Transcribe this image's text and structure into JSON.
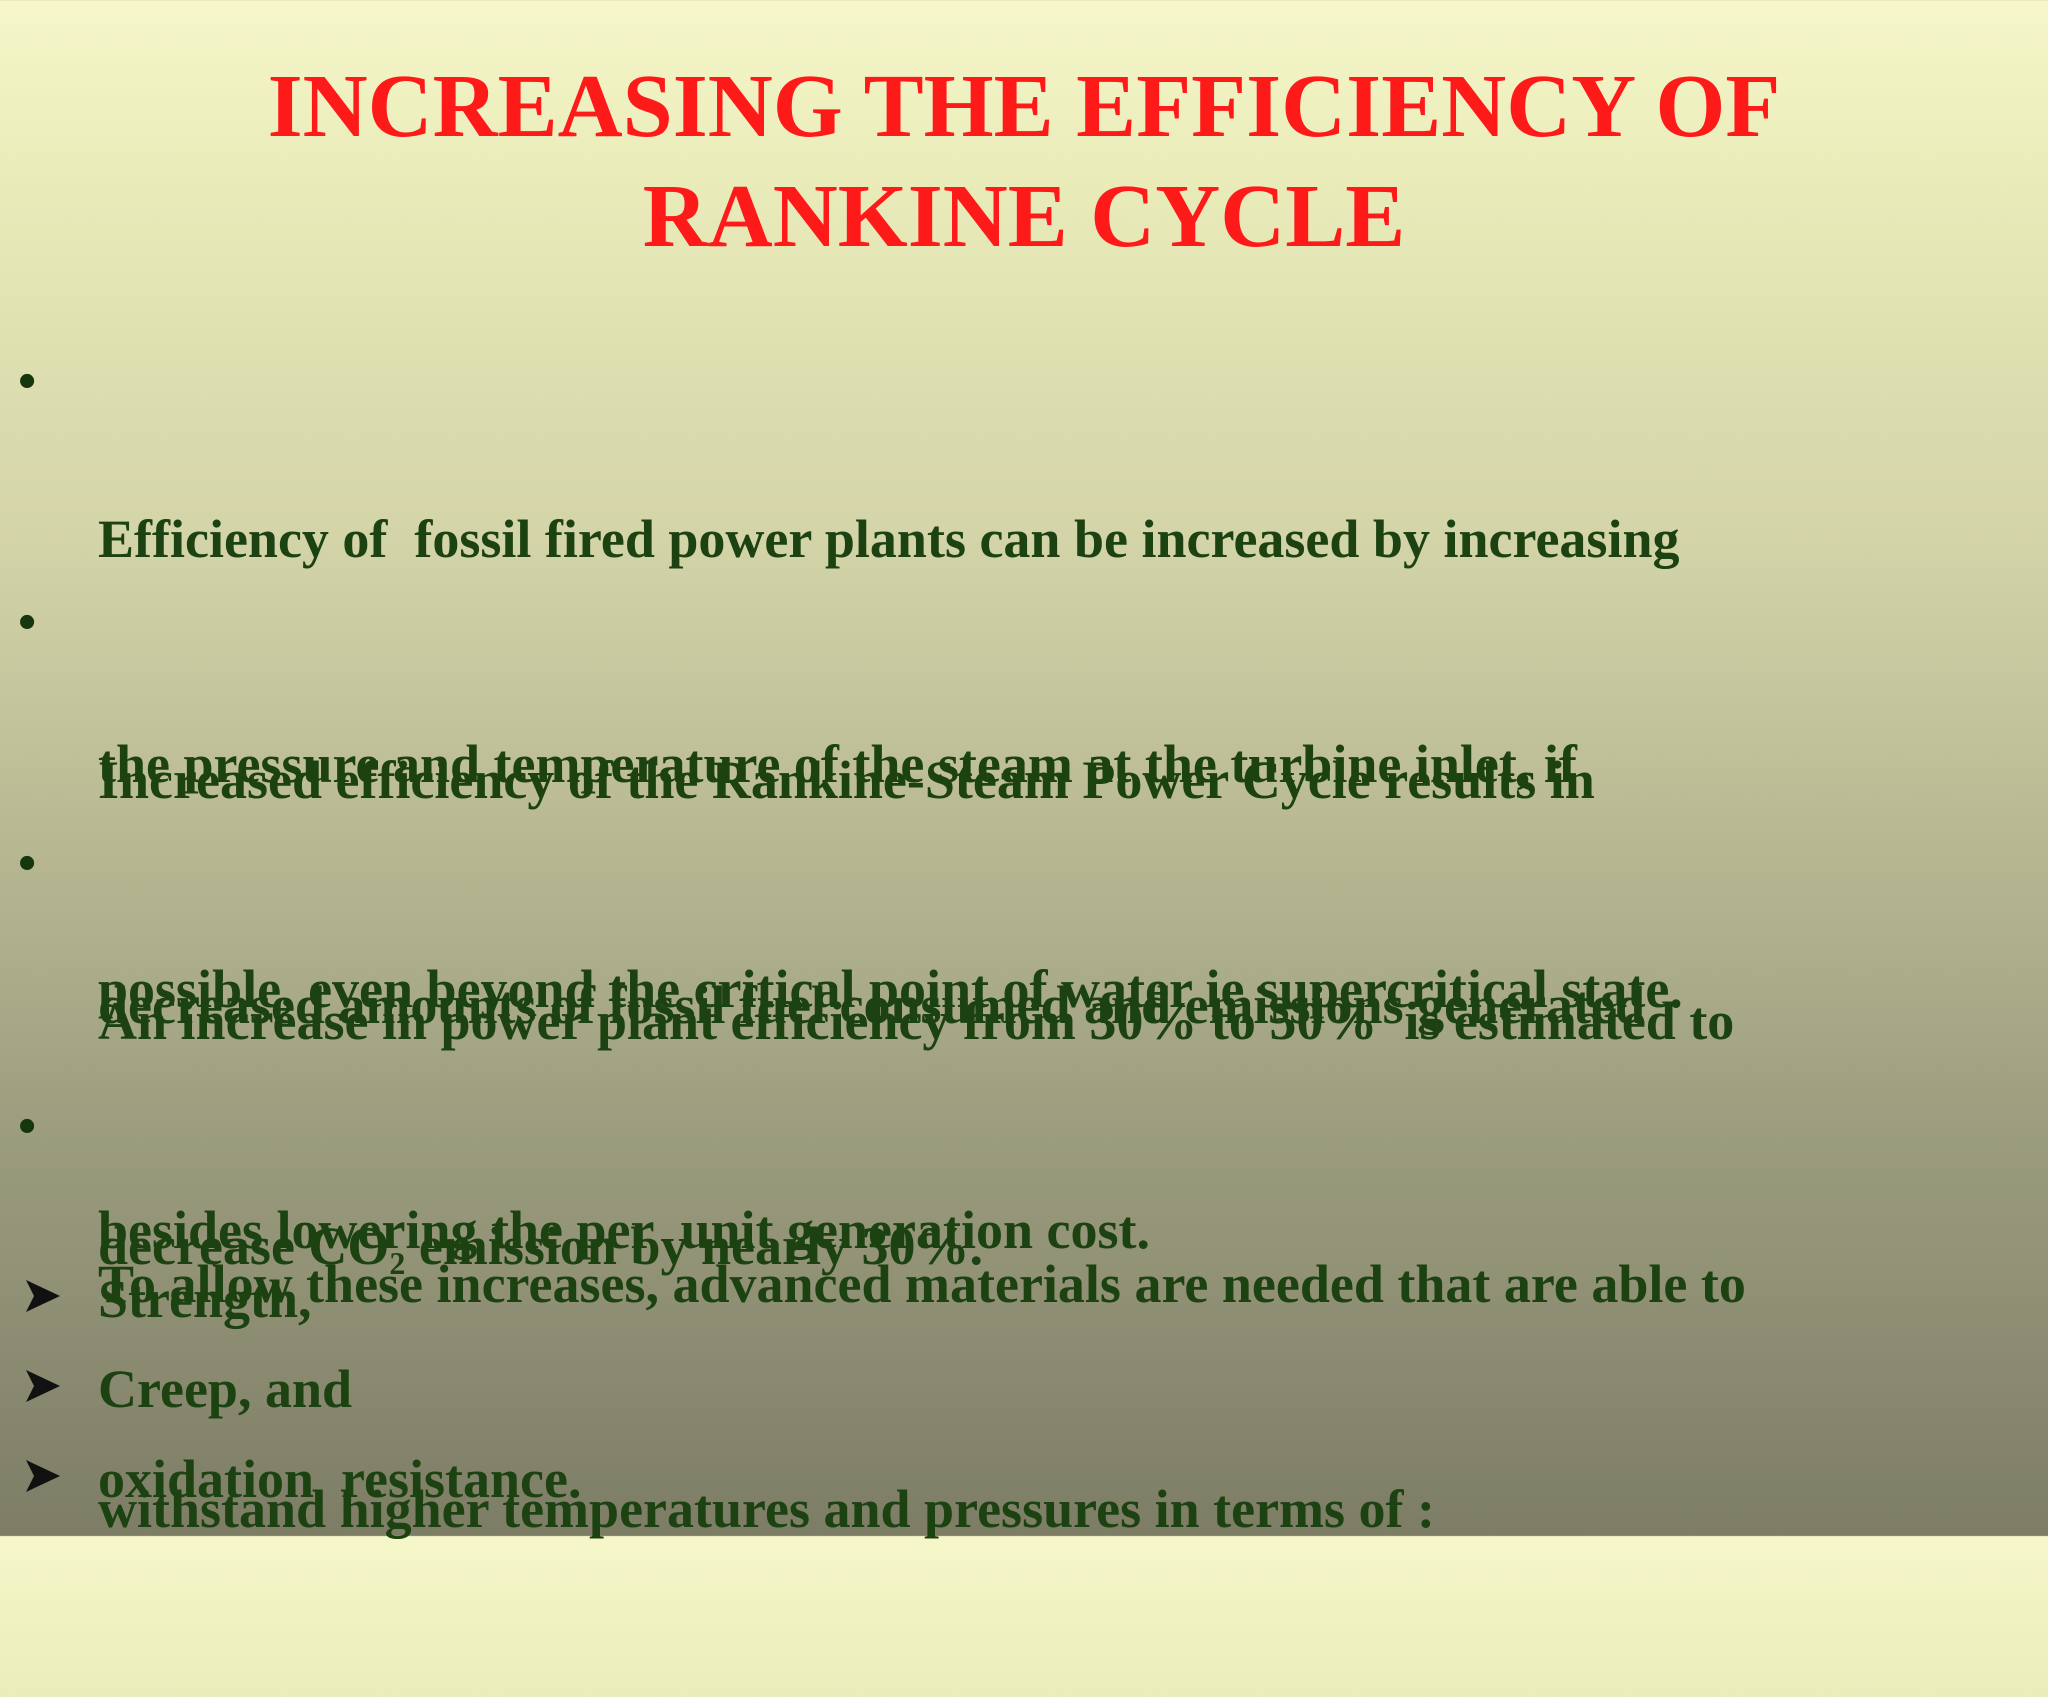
{
  "slide": {
    "title_lines": [
      "INCREASING THE EFFICIENCY OF",
      "RANKINE CYCLE"
    ],
    "bullets": [
      {
        "marker": "•",
        "lines": [
          "Efficiency of  fossil fired power plants can be increased by increasing",
          "the pressure and temperature of the steam at the turbine inlet, if",
          "possible, even beyond the critical point of water ie supercritical state."
        ]
      },
      {
        "marker": "•",
        "lines": [
          "Increased efficiency of the Rankine-Steam Power Cycle results in",
          "decreased amounts of fossil fuel consumed and emissions generated",
          "besides lowering the per  unit generation cost."
        ]
      },
      {
        "marker": "•",
        "line1": "An increase in power plant efficiency from 30% to 50%  is estimated to",
        "line2_pre": "decrease CO",
        "line2_sub": "2",
        "line2_post": " emission by nearly 30%."
      },
      {
        "marker": "•",
        "lines": [
          "To allow these increases, advanced materials are needed that are able to",
          "withstand higher temperatures and pressures in terms of :"
        ]
      }
    ],
    "sub_items": [
      "Strength,",
      "Creep, and",
      "oxidation  resistance."
    ]
  }
}
